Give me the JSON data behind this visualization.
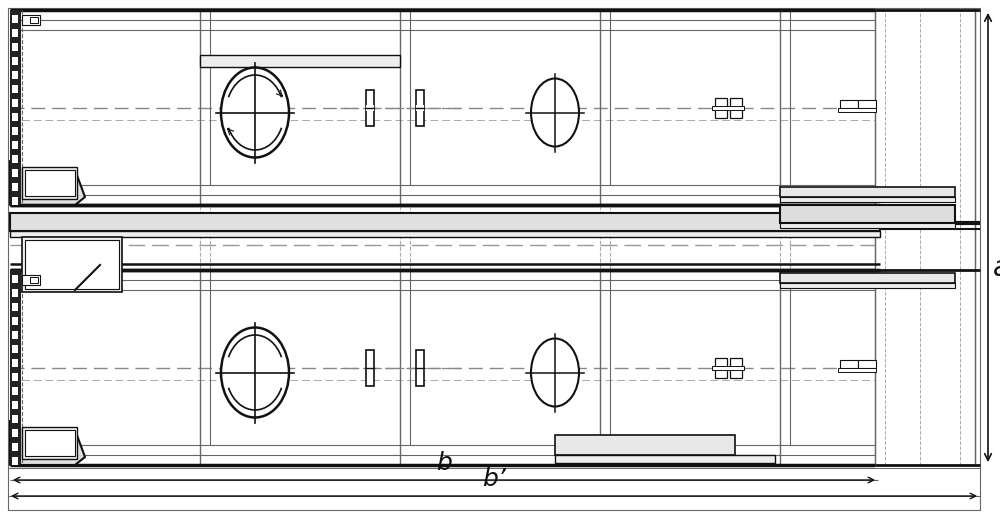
{
  "fig_width": 10.0,
  "fig_height": 5.19,
  "dpi": 100,
  "lc": "#666666",
  "dc": "#111111",
  "label_a": "a",
  "label_b": "b",
  "label_b2": "b’"
}
